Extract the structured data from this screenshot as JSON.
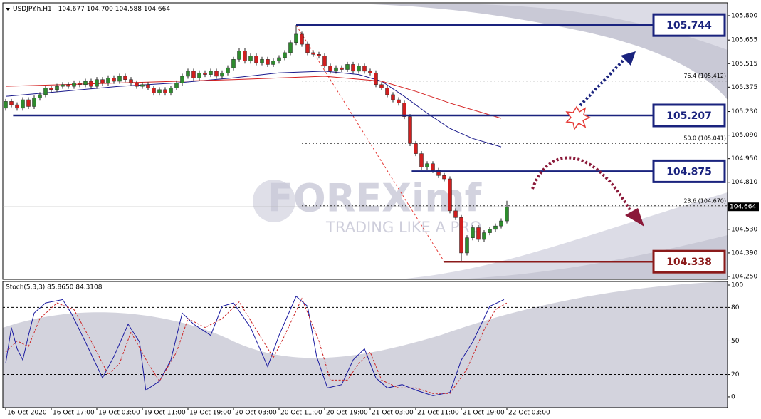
{
  "chart_data": [
    {
      "type": "candlestick",
      "title": "USDJPY.h,H1",
      "header_values": [
        "104.677",
        "104.700",
        "104.588",
        "104.664"
      ],
      "xlim": [
        -0.5,
        126.75
      ],
      "ylim": [
        104.233,
        105.876
      ],
      "xticks": [
        {
          "value": 0,
          "label": "16 Oct 2020"
        },
        {
          "value": 8,
          "label": "16 Oct 17:00"
        },
        {
          "value": 16,
          "label": "19 Oct 03:00"
        },
        {
          "value": 24,
          "label": "19 Oct 11:00"
        },
        {
          "value": 32,
          "label": "19 Oct 19:00"
        },
        {
          "value": 40,
          "label": "20 Oct 03:00"
        },
        {
          "value": 48,
          "label": "20 Oct 11:00"
        },
        {
          "value": 56,
          "label": "20 Oct 19:00"
        },
        {
          "value": 64,
          "label": "21 Oct 03:00"
        },
        {
          "value": 72,
          "label": "21 Oct 11:00"
        },
        {
          "value": 80,
          "label": "21 Oct 19:00"
        },
        {
          "value": 88,
          "label": "22 Oct 03:00"
        }
      ],
      "yticks": [
        {
          "value": 105.8,
          "label": "105.800"
        },
        {
          "value": 105.655,
          "label": "105.655"
        },
        {
          "value": 105.515,
          "label": "105.515"
        },
        {
          "value": 105.375,
          "label": "105.375"
        },
        {
          "value": 105.23,
          "label": "105.230"
        },
        {
          "value": 105.09,
          "label": "105.090"
        },
        {
          "value": 104.95,
          "label": "104.950"
        },
        {
          "value": 104.81,
          "label": "104.810"
        },
        {
          "value": 104.67,
          "label": "104.670"
        },
        {
          "value": 104.53,
          "label": "104.530"
        },
        {
          "value": 104.39,
          "label": "104.390"
        },
        {
          "value": 104.25,
          "label": "104.250"
        }
      ],
      "up_color": "#2e8b2e",
      "down_color": "#d01f1f",
      "open": [
        105.25,
        105.29,
        105.27,
        105.25,
        105.3,
        105.26,
        105.31,
        105.33,
        105.37,
        105.36,
        105.38,
        105.39,
        105.38,
        105.4,
        105.39,
        105.41,
        105.38,
        105.42,
        105.4,
        105.43,
        105.41,
        105.44,
        105.42,
        105.4,
        105.38,
        105.39,
        105.37,
        105.34,
        105.36,
        105.34,
        105.37,
        105.4,
        105.44,
        105.47,
        105.43,
        105.46,
        105.45,
        105.47,
        105.44,
        105.46,
        105.49,
        105.54,
        105.59,
        105.53,
        105.56,
        105.52,
        105.54,
        105.51,
        105.53,
        105.55,
        105.58,
        105.64,
        105.69,
        105.63,
        105.58,
        105.57,
        105.56,
        105.5,
        105.47,
        105.49,
        105.48,
        105.51,
        105.47,
        105.5,
        105.47,
        105.46,
        105.39,
        105.37,
        105.33,
        105.3,
        105.28,
        105.2,
        105.04,
        104.98,
        104.9,
        104.92,
        104.88,
        104.85,
        104.83,
        104.64,
        104.6,
        104.39,
        104.48,
        104.54,
        104.47,
        104.51,
        104.53,
        104.55,
        104.58
      ],
      "high": [
        105.305,
        105.305,
        105.285,
        105.315,
        105.315,
        105.325,
        105.345,
        105.385,
        105.385,
        105.395,
        105.405,
        105.405,
        105.415,
        105.415,
        105.425,
        105.425,
        105.435,
        105.435,
        105.445,
        105.445,
        105.455,
        105.455,
        105.435,
        105.415,
        105.405,
        105.405,
        105.385,
        105.375,
        105.375,
        105.385,
        105.415,
        105.455,
        105.485,
        105.485,
        105.475,
        105.475,
        105.485,
        105.485,
        105.475,
        105.505,
        105.555,
        105.605,
        105.605,
        105.575,
        105.575,
        105.555,
        105.555,
        105.545,
        105.565,
        105.595,
        105.655,
        105.744,
        105.705,
        105.645,
        105.595,
        105.585,
        105.575,
        105.515,
        105.505,
        105.505,
        105.525,
        105.525,
        105.515,
        105.515,
        105.485,
        105.475,
        105.405,
        105.385,
        105.345,
        105.315,
        105.295,
        105.215,
        105.055,
        104.995,
        104.935,
        104.935,
        104.895,
        104.865,
        104.845,
        104.655,
        104.615,
        104.495,
        104.555,
        104.555,
        104.525,
        104.545,
        104.565,
        104.595,
        104.7
      ],
      "low": [
        105.235,
        105.255,
        105.235,
        105.235,
        105.245,
        105.245,
        105.295,
        105.315,
        105.345,
        105.345,
        105.365,
        105.365,
        105.365,
        105.375,
        105.375,
        105.365,
        105.365,
        105.385,
        105.385,
        105.395,
        105.395,
        105.405,
        105.385,
        105.365,
        105.365,
        105.355,
        105.325,
        105.325,
        105.325,
        105.325,
        105.355,
        105.385,
        105.425,
        105.415,
        105.415,
        105.435,
        105.435,
        105.425,
        105.425,
        105.445,
        105.475,
        105.525,
        105.515,
        105.515,
        105.505,
        105.505,
        105.495,
        105.495,
        105.515,
        105.535,
        105.565,
        105.625,
        105.615,
        105.565,
        105.555,
        105.545,
        105.485,
        105.455,
        105.455,
        105.465,
        105.465,
        105.455,
        105.455,
        105.455,
        105.445,
        105.375,
        105.355,
        105.315,
        105.285,
        105.265,
        105.185,
        105.025,
        104.965,
        104.885,
        104.885,
        104.865,
        104.835,
        104.815,
        104.625,
        104.585,
        104.338,
        104.375,
        104.465,
        104.455,
        104.455,
        104.495,
        104.515,
        104.535,
        104.565
      ],
      "close": [
        105.29,
        105.27,
        105.25,
        105.3,
        105.26,
        105.31,
        105.33,
        105.37,
        105.36,
        105.38,
        105.39,
        105.38,
        105.4,
        105.39,
        105.41,
        105.38,
        105.42,
        105.4,
        105.43,
        105.41,
        105.44,
        105.42,
        105.4,
        105.38,
        105.39,
        105.37,
        105.34,
        105.36,
        105.34,
        105.37,
        105.4,
        105.44,
        105.47,
        105.43,
        105.46,
        105.45,
        105.47,
        105.44,
        105.46,
        105.49,
        105.54,
        105.59,
        105.53,
        105.56,
        105.52,
        105.54,
        105.51,
        105.53,
        105.55,
        105.58,
        105.64,
        105.69,
        105.63,
        105.58,
        105.57,
        105.56,
        105.5,
        105.47,
        105.49,
        105.48,
        105.51,
        105.47,
        105.5,
        105.47,
        105.46,
        105.39,
        105.37,
        105.33,
        105.3,
        105.28,
        105.2,
        105.04,
        104.98,
        104.9,
        104.92,
        104.88,
        104.85,
        104.83,
        104.64,
        104.6,
        104.39,
        104.48,
        104.54,
        104.47,
        104.51,
        104.53,
        104.55,
        104.58,
        104.664
      ],
      "moving_averages": [
        {
          "color": "#1a1a8c",
          "x": [
            0,
            10,
            20,
            30,
            40,
            48,
            56,
            62,
            66,
            70,
            74,
            78,
            82,
            87
          ],
          "values": [
            105.32,
            105.35,
            105.38,
            105.4,
            105.43,
            105.46,
            105.47,
            105.45,
            105.41,
            105.32,
            105.22,
            105.13,
            105.07,
            105.02
          ]
        },
        {
          "color": "#d42020",
          "x": [
            0,
            20,
            40,
            56,
            66,
            72,
            78,
            84,
            87
          ],
          "values": [
            105.38,
            105.4,
            105.42,
            105.44,
            105.41,
            105.35,
            105.28,
            105.22,
            105.19
          ]
        }
      ],
      "current_price": 104.664,
      "levels": [
        {
          "value": 105.744,
          "start": 51,
          "color": "#1a237e"
        },
        {
          "value": 105.207,
          "start": 1.3,
          "color": "#1a237e"
        },
        {
          "value": 104.875,
          "start": 71.3,
          "color": "#1a237e"
        },
        {
          "value": 104.338,
          "start": 77,
          "color": "#8b1a1a"
        }
      ],
      "fib_levels": [
        {
          "value": 105.412,
          "label": "76.4 (105.412)"
        },
        {
          "value": 105.041,
          "label": "50.0 (105.041)"
        },
        {
          "value": 104.67,
          "label": "23.6 (104.670)"
        }
      ],
      "fib_start": 52,
      "watermark": {
        "brand": "FOREXimf",
        "tagline": "TRADING LIKE A PRO"
      }
    },
    {
      "type": "line",
      "title": "Stoch(5,3,3) 85.8650 84.3108",
      "xlim": [
        -0.5,
        126.75
      ],
      "ylim": [
        -9.6,
        103.2
      ],
      "yticks": [
        0,
        20,
        50,
        80,
        100
      ],
      "grid": "dashed",
      "series": [
        {
          "color": "#1a1aa0",
          "x": [
            0,
            1,
            2,
            3,
            4,
            5,
            7,
            10,
            11.5,
            14,
            17,
            19,
            21.5,
            23.5,
            24.6,
            27,
            29,
            31,
            33,
            36,
            38,
            40,
            43,
            46,
            48,
            51,
            53,
            54.6,
            56.5,
            59,
            61,
            63,
            65,
            67,
            69.6,
            72,
            75,
            78,
            80,
            82,
            85,
            87.5
          ],
          "values": [
            30,
            62,
            43,
            33,
            55,
            75,
            84,
            87,
            75,
            49,
            17,
            36,
            65,
            49,
            6,
            14,
            33,
            75,
            65,
            55,
            81,
            84,
            62,
            27,
            55,
            90,
            81,
            36,
            8,
            11,
            33,
            43,
            17,
            8,
            11,
            6,
            1,
            4,
            33,
            49,
            81,
            87
          ]
        },
        {
          "color": "#cc2222",
          "dashed": true,
          "x": [
            0,
            2,
            4,
            6,
            9,
            12,
            15,
            18,
            20,
            22,
            25,
            27,
            30,
            32,
            35,
            38,
            41,
            44,
            47,
            49,
            52,
            55,
            57,
            60,
            62,
            64,
            66,
            69,
            72,
            75,
            78,
            81,
            84,
            86,
            88
          ],
          "values": [
            40,
            50,
            45,
            70,
            84,
            78,
            50,
            20,
            30,
            58,
            30,
            14,
            40,
            70,
            62,
            70,
            85,
            60,
            35,
            55,
            88,
            50,
            15,
            15,
            30,
            40,
            15,
            8,
            8,
            3,
            3,
            25,
            60,
            78,
            84
          ]
        }
      ]
    }
  ]
}
